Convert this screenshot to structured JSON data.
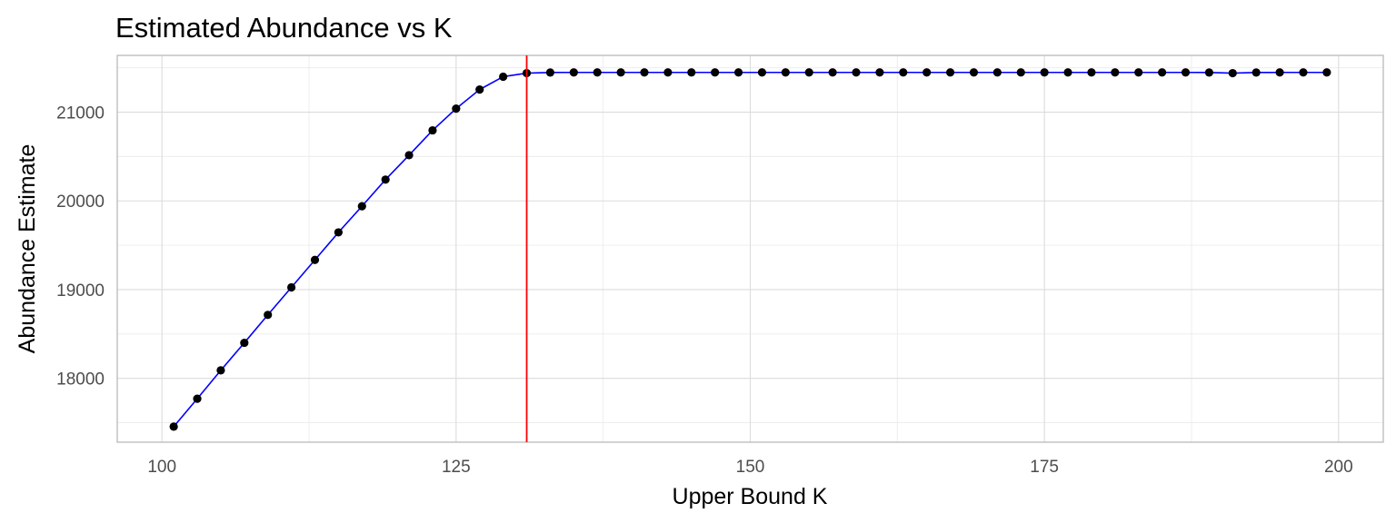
{
  "chart_data": {
    "type": "line",
    "title": "Estimated Abundance vs K",
    "xlabel": "Upper Bound K",
    "ylabel": "Abundance Estimate",
    "xlim": [
      96.2,
      203.8
    ],
    "ylim": [
      17280,
      21640
    ],
    "x_ticks": [
      100,
      125,
      150,
      175,
      200
    ],
    "x_tick_labels": [
      "100",
      "125",
      "150",
      "175",
      "200"
    ],
    "y_ticks": [
      18000,
      19000,
      20000,
      21000
    ],
    "y_tick_labels": [
      "18000",
      "19000",
      "20000",
      "21000"
    ],
    "grid": true,
    "legend": "none",
    "vline": {
      "x": 131,
      "color": "#ff0000"
    },
    "series": [
      {
        "line_color": "#0000ff",
        "point_color": "#000000",
        "x": [
          101,
          103,
          105,
          107,
          109,
          111,
          113,
          115,
          117,
          119,
          121,
          123,
          125,
          127,
          129,
          131,
          133,
          135,
          137,
          139,
          141,
          143,
          145,
          147,
          149,
          151,
          153,
          155,
          157,
          159,
          161,
          163,
          165,
          167,
          169,
          171,
          173,
          175,
          177,
          179,
          181,
          183,
          185,
          187,
          189,
          191,
          193,
          195,
          197,
          199
        ],
        "y": [
          17455,
          17770,
          18090,
          18400,
          18715,
          19025,
          19335,
          19645,
          19940,
          20240,
          20515,
          20795,
          21040,
          21255,
          21400,
          21440,
          21447,
          21448,
          21448,
          21448,
          21448,
          21448,
          21448,
          21448,
          21448,
          21448,
          21448,
          21448,
          21448,
          21448,
          21448,
          21448,
          21448,
          21448,
          21448,
          21448,
          21448,
          21448,
          21448,
          21448,
          21448,
          21448,
          21448,
          21448,
          21447,
          21440,
          21447,
          21448,
          21448,
          21448
        ]
      }
    ]
  }
}
